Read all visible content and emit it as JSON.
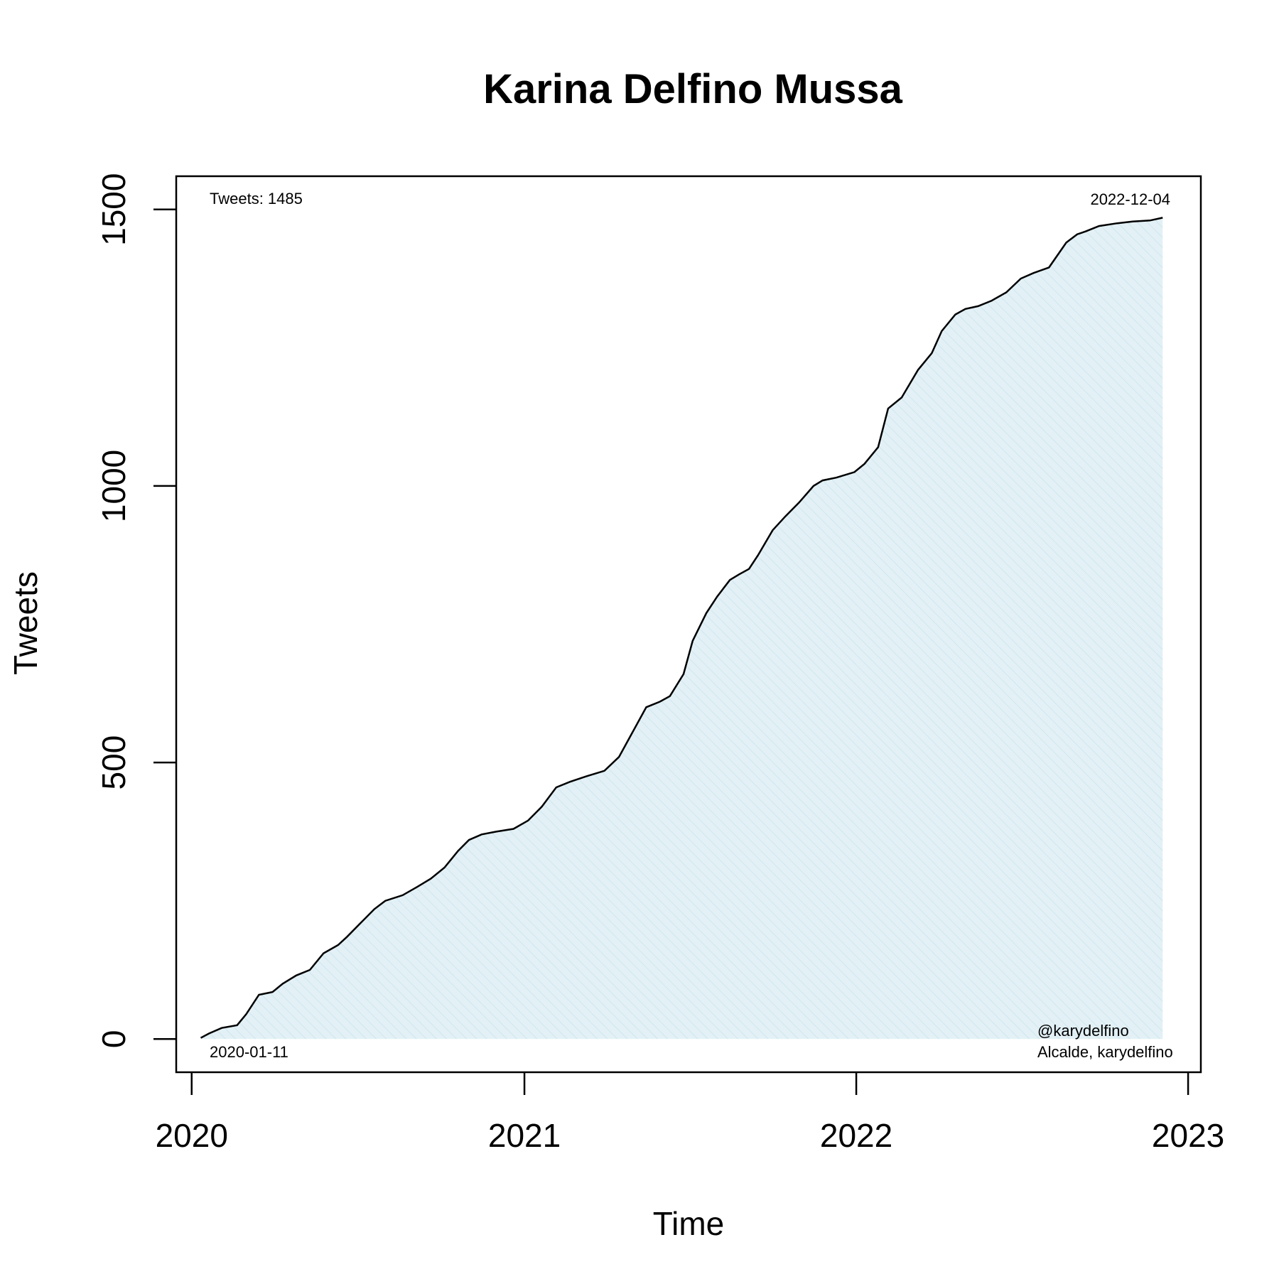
{
  "chart_data": {
    "type": "area",
    "title": "Karina Delfino Mussa",
    "xlabel": "Time",
    "ylabel": "Tweets",
    "xlim": [
      "2019-12-15",
      "2023-01-15"
    ],
    "ylim": [
      -60,
      1560
    ],
    "x_ticks": [
      "2020",
      "2021",
      "2022",
      "2023"
    ],
    "y_ticks": [
      0,
      500,
      1000,
      1500
    ],
    "grid": false,
    "colors": {
      "line": "#000000",
      "fill": "#e3f1f6",
      "hatch": "#cfe6ee",
      "axis": "#000000"
    },
    "annotations": {
      "total": "Tweets: 1485",
      "end_date": "2022-12-04",
      "start_date": "2020-01-11",
      "handle": "@karydelfino",
      "subtitle": "Alcalde, karydelfino"
    },
    "series": [
      {
        "x": [
          "2020-01-11",
          "2020-01-20",
          "2020-02-03",
          "2020-02-20",
          "2020-03-01",
          "2020-03-15",
          "2020-03-30",
          "2020-04-10",
          "2020-04-25",
          "2020-05-10",
          "2020-05-25",
          "2020-06-10",
          "2020-06-20",
          "2020-07-05",
          "2020-07-20",
          "2020-08-01",
          "2020-08-20",
          "2020-09-05",
          "2020-09-20",
          "2020-10-05",
          "2020-10-20",
          "2020-11-01",
          "2020-11-15",
          "2020-12-01",
          "2020-12-20",
          "2021-01-05",
          "2021-01-20",
          "2021-02-05",
          "2021-02-20",
          "2021-03-10",
          "2021-03-30",
          "2021-04-15",
          "2021-04-25",
          "2021-05-15",
          "2021-05-30",
          "2021-06-10",
          "2021-06-25",
          "2021-07-05",
          "2021-07-20",
          "2021-08-01",
          "2021-08-15",
          "2021-08-25",
          "2021-09-05",
          "2021-09-15",
          "2021-10-01",
          "2021-10-15",
          "2021-10-30",
          "2021-11-15",
          "2021-11-25",
          "2021-12-10",
          "2021-12-30",
          "2022-01-10",
          "2022-01-25",
          "2022-02-05",
          "2022-02-20",
          "2022-03-10",
          "2022-03-25",
          "2022-04-05",
          "2022-04-20",
          "2022-05-01",
          "2022-05-15",
          "2022-05-30",
          "2022-06-15",
          "2022-07-01",
          "2022-07-15",
          "2022-08-01",
          "2022-08-20",
          "2022-09-01",
          "2022-09-10",
          "2022-09-25",
          "2022-10-15",
          "2022-11-01",
          "2022-11-20",
          "2022-12-04"
        ],
        "values": [
          2,
          10,
          20,
          25,
          45,
          80,
          85,
          100,
          115,
          125,
          155,
          170,
          185,
          210,
          235,
          250,
          260,
          275,
          290,
          310,
          340,
          360,
          370,
          375,
          380,
          395,
          420,
          455,
          465,
          475,
          485,
          510,
          540,
          600,
          610,
          620,
          660,
          720,
          770,
          800,
          830,
          840,
          850,
          875,
          920,
          945,
          970,
          1000,
          1010,
          1015,
          1025,
          1040,
          1070,
          1140,
          1160,
          1210,
          1240,
          1280,
          1310,
          1320,
          1325,
          1335,
          1350,
          1375,
          1385,
          1395,
          1440,
          1455,
          1460,
          1470,
          1475,
          1478,
          1480,
          1485
        ]
      }
    ]
  }
}
